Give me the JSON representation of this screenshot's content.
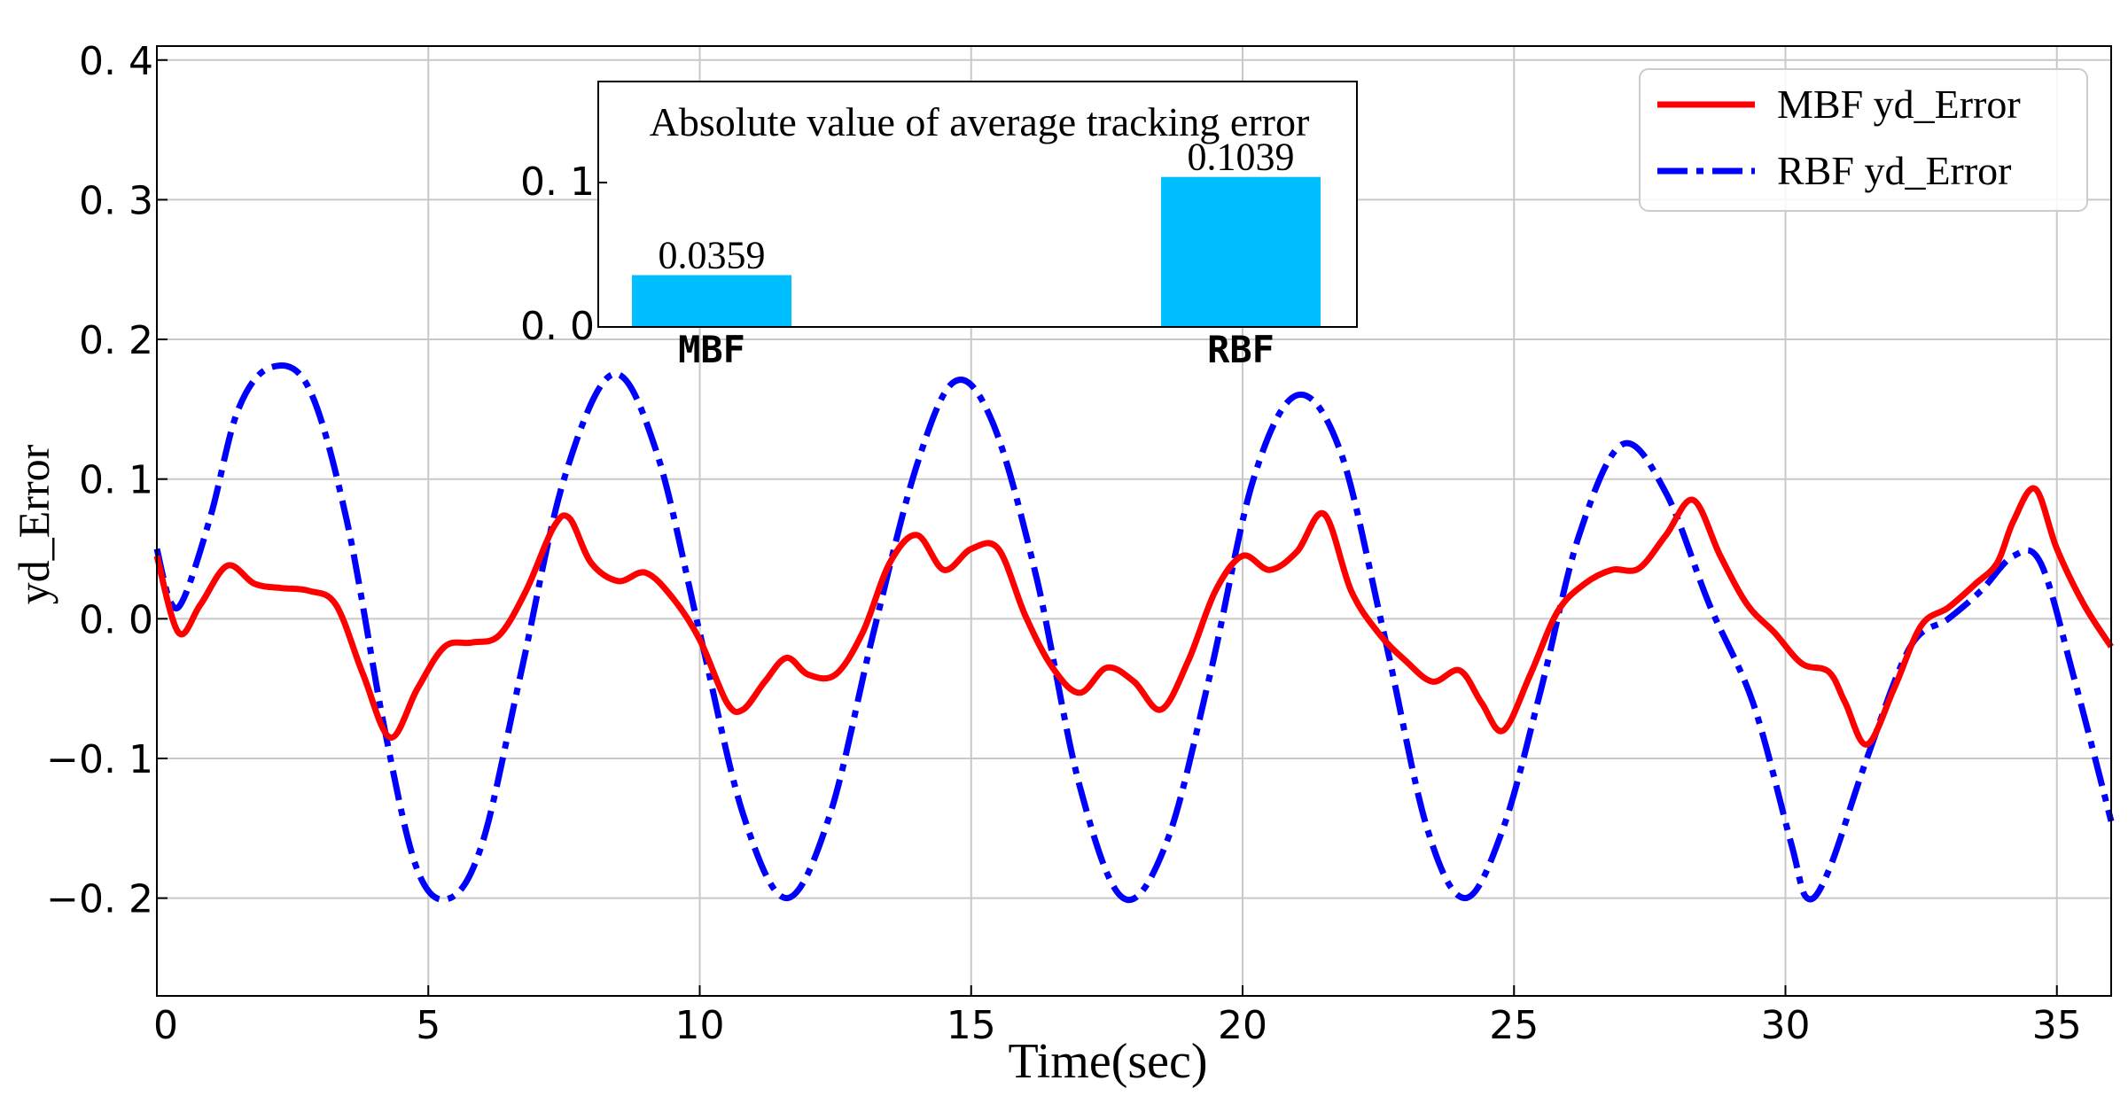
{
  "chart_data": [
    {
      "type": "line",
      "xlabel": "Time(sec)",
      "ylabel": "yd_Error",
      "xlim": [
        0,
        36
      ],
      "ylim": [
        -0.27,
        0.41
      ],
      "xticks": [
        0,
        5,
        10,
        15,
        20,
        25,
        30,
        35
      ],
      "xtick_labels": [
        "0",
        "5",
        "10",
        "15",
        "20",
        "25",
        "30",
        "35"
      ],
      "yticks": [
        -0.2,
        -0.1,
        0.0,
        0.1,
        0.2,
        0.3,
        0.4
      ],
      "ytick_labels": [
        "−0. 2",
        "−0. 1",
        "0. 0",
        "0. 1",
        "0. 2",
        "0. 3",
        "0. 4"
      ],
      "grid": true,
      "legend_position": "top-right",
      "series": [
        {
          "name": "MBF yd_Error",
          "color": "#ff0000",
          "style": "solid",
          "x": [
            0,
            0.4,
            0.8,
            1.3,
            1.8,
            2.3,
            2.8,
            3.3,
            3.8,
            4.3,
            4.8,
            5.3,
            5.8,
            6.3,
            6.8,
            7.3,
            7.6,
            8.0,
            8.5,
            9.0,
            9.5,
            10.0,
            10.5,
            10.8,
            11.2,
            11.6,
            12.0,
            12.5,
            13.0,
            13.5,
            14.0,
            14.5,
            15.0,
            15.5,
            16.0,
            16.5,
            17.0,
            17.5,
            18.0,
            18.5,
            19.0,
            19.5,
            20.0,
            20.5,
            21.0,
            21.5,
            22.0,
            22.5,
            23.0,
            23.5,
            24.0,
            24.4,
            24.8,
            25.3,
            25.8,
            26.3,
            26.8,
            27.3,
            27.8,
            28.3,
            28.8,
            29.3,
            29.8,
            30.3,
            30.8,
            31.1,
            31.5,
            32.0,
            32.5,
            33.0,
            33.5,
            33.9,
            34.2,
            34.6,
            35.0,
            35.5,
            36.0
          ],
          "values": [
            0.045,
            -0.01,
            0.01,
            0.038,
            0.025,
            0.022,
            0.02,
            0.01,
            -0.04,
            -0.085,
            -0.05,
            -0.02,
            -0.017,
            -0.012,
            0.02,
            0.065,
            0.072,
            0.04,
            0.027,
            0.033,
            0.015,
            -0.015,
            -0.06,
            -0.065,
            -0.045,
            -0.028,
            -0.04,
            -0.04,
            -0.01,
            0.04,
            0.06,
            0.035,
            0.05,
            0.05,
            0.002,
            -0.035,
            -0.053,
            -0.035,
            -0.045,
            -0.065,
            -0.03,
            0.02,
            0.045,
            0.035,
            0.048,
            0.075,
            0.02,
            -0.01,
            -0.03,
            -0.045,
            -0.037,
            -0.06,
            -0.08,
            -0.04,
            0.005,
            0.025,
            0.035,
            0.036,
            0.06,
            0.085,
            0.045,
            0.01,
            -0.01,
            -0.032,
            -0.038,
            -0.06,
            -0.09,
            -0.05,
            -0.005,
            0.008,
            0.025,
            0.04,
            0.07,
            0.093,
            0.05,
            0.01,
            -0.02
          ]
        },
        {
          "name": "RBF yd_Error",
          "color": "#0000ff",
          "style": "dashdot",
          "x": [
            0,
            0.25,
            0.5,
            1.0,
            1.5,
            2.1,
            2.8,
            3.5,
            4.2,
            4.8,
            5.4,
            6.0,
            6.7,
            7.5,
            8.4,
            9.2,
            10.0,
            10.8,
            11.6,
            12.4,
            13.2,
            14.0,
            14.7,
            15.4,
            16.2,
            17.0,
            17.8,
            18.6,
            19.4,
            20.2,
            21.0,
            21.8,
            22.6,
            23.4,
            24.1,
            24.8,
            25.5,
            26.2,
            27.0,
            27.8,
            28.6,
            29.4,
            30.1,
            30.4,
            30.8,
            31.5,
            32.3,
            33.0,
            33.6,
            34.2,
            34.7,
            35.3,
            36.0
          ],
          "values": [
            0.05,
            0.012,
            0.015,
            0.075,
            0.15,
            0.18,
            0.165,
            0.07,
            -0.08,
            -0.18,
            -0.2,
            -0.16,
            -0.04,
            0.1,
            0.175,
            0.12,
            -0.01,
            -0.14,
            -0.2,
            -0.14,
            -0.01,
            0.11,
            0.17,
            0.14,
            0.03,
            -0.12,
            -0.2,
            -0.16,
            -0.04,
            0.1,
            0.16,
            0.12,
            -0.01,
            -0.15,
            -0.2,
            -0.15,
            -0.05,
            0.06,
            0.125,
            0.09,
            0.01,
            -0.06,
            -0.16,
            -0.2,
            -0.18,
            -0.1,
            -0.02,
            0.0,
            0.02,
            0.045,
            0.04,
            -0.04,
            -0.145
          ]
        }
      ]
    },
    {
      "type": "bar",
      "title": "Absolute value of average tracking error",
      "categories": [
        "MBF",
        "RBF"
      ],
      "values": [
        0.0359,
        0.1039
      ],
      "value_labels": [
        "0.0359",
        "0.1039"
      ],
      "ylim": [
        0,
        0.17
      ],
      "yticks": [
        0.0,
        0.1
      ],
      "ytick_labels": [
        "0. 0",
        "0. 1"
      ],
      "color": "#00bfff",
      "legend_position": "none",
      "placement": "inset, upper-middle"
    }
  ]
}
